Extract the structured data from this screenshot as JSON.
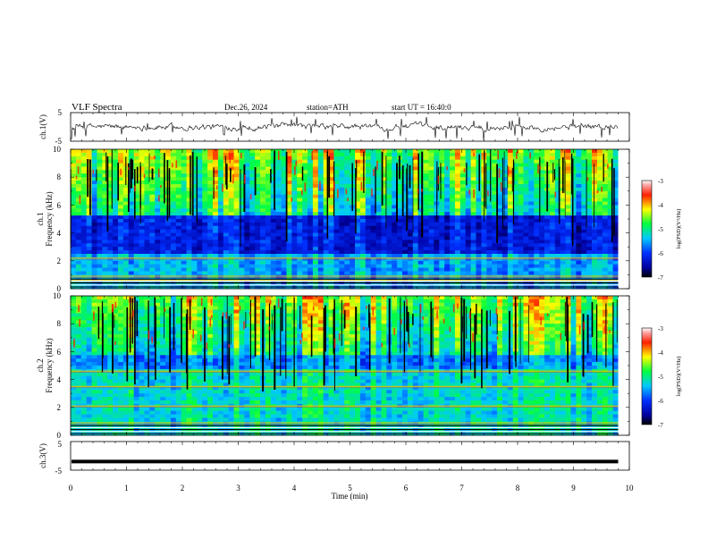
{
  "header": {
    "title": "VLF  Spectra",
    "date": "Dec.26, 2024",
    "station": "station=ATH",
    "start_time": "start  UT  =   16:40:0"
  },
  "chart_data": {
    "type": "heatmap",
    "xlabel": "Time  (min)",
    "xlim": [
      0,
      10
    ],
    "xticks": [
      "0",
      "1",
      "2",
      "3",
      "4",
      "5",
      "6",
      "7",
      "8",
      "9",
      "10"
    ],
    "data_end_min": 9.8,
    "panels": [
      {
        "id": "ch1-waveform",
        "type": "line",
        "ylabel": "ch.1(V)",
        "ylim": [
          -5,
          5
        ],
        "yticks": [
          "5",
          "-5"
        ],
        "baseline_v": 0
      },
      {
        "id": "ch1-spectrogram",
        "type": "heatmap",
        "ylabel": [
          "ch.1",
          "Frequency  (kHz)"
        ],
        "ylim": [
          0,
          10
        ],
        "yticks": [
          "0",
          "2",
          "4",
          "6",
          "8",
          "10"
        ],
        "colorbar": {
          "label": "log(PSD)(V²/Hz)",
          "range": [
            -7,
            -3
          ],
          "ticks": [
            "-3",
            "-4",
            "-5",
            "-6",
            "-7"
          ]
        },
        "quiet_band_khz": [
          2.5,
          5.2
        ],
        "lines_khz": [
          2.2,
          0.9,
          0.6
        ]
      },
      {
        "id": "ch2-spectrogram",
        "type": "heatmap",
        "ylabel": [
          "ch.2",
          "Frequency  (kHz)"
        ],
        "ylim": [
          0,
          10
        ],
        "yticks": [
          "0",
          "2",
          "4",
          "6",
          "8",
          "10"
        ],
        "colorbar": {
          "label": "log(PSD)(V²/Hz)",
          "range": [
            -7,
            -3
          ],
          "ticks": [
            "-3",
            "-4",
            "-5",
            "-6",
            "-7"
          ]
        },
        "quiet_band_khz": [
          4.8,
          5.8
        ],
        "lines_khz": [
          4.6,
          3.5,
          2.1,
          0.9
        ]
      },
      {
        "id": "ch3-waveform",
        "type": "line",
        "ylabel": "ch.3(V)",
        "ylim": [
          -5,
          5
        ],
        "yticks": [
          "5",
          "-5"
        ],
        "baseline_v": -2
      }
    ]
  }
}
